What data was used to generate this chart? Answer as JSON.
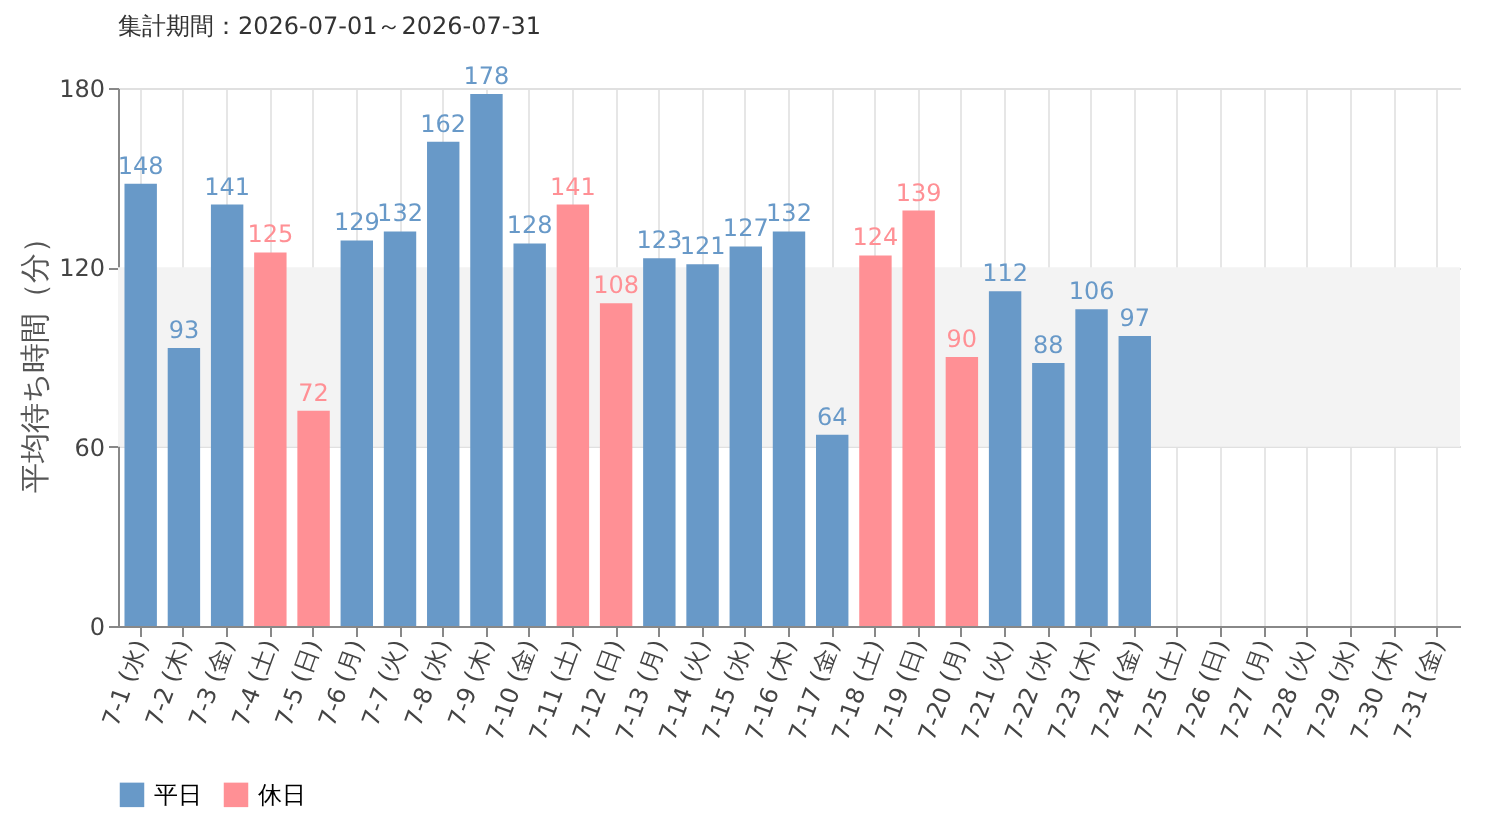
{
  "chart_data": {
    "type": "bar",
    "title": "集計期間：2026-07-01～2026-07-31",
    "ylabel": "平均待ち時間（分）",
    "categories": [
      "7-1 (水)",
      "7-2 (木)",
      "7-3 (金)",
      "7-4 (土)",
      "7-5 (日)",
      "7-6 (月)",
      "7-7 (火)",
      "7-8 (水)",
      "7-9 (木)",
      "7-10 (金)",
      "7-11 (土)",
      "7-12 (日)",
      "7-13 (月)",
      "7-14 (火)",
      "7-15 (水)",
      "7-16 (木)",
      "7-17 (金)",
      "7-18 (土)",
      "7-19 (日)",
      "7-20 (月)",
      "7-21 (火)",
      "7-22 (水)",
      "7-23 (木)",
      "7-24 (金)",
      "7-25 (土)",
      "7-26 (日)",
      "7-27 (月)",
      "7-28 (火)",
      "7-29 (水)",
      "7-30 (木)",
      "7-31 (金)"
    ],
    "series": [
      {
        "name": "平日",
        "color": "#6899c8",
        "values": [
          148,
          93,
          141,
          null,
          null,
          129,
          132,
          162,
          178,
          128,
          null,
          null,
          123,
          121,
          127,
          132,
          64,
          null,
          null,
          null,
          112,
          88,
          106,
          97,
          null,
          null,
          null,
          null,
          null,
          null,
          null
        ]
      },
      {
        "name": "休日",
        "color": "#ff9095",
        "values": [
          null,
          null,
          null,
          125,
          72,
          null,
          null,
          null,
          null,
          null,
          141,
          108,
          null,
          null,
          null,
          null,
          null,
          124,
          139,
          90,
          null,
          null,
          null,
          null,
          null,
          null,
          null,
          null,
          null,
          null,
          null
        ]
      }
    ],
    "ylim": [
      0,
      180
    ],
    "yticks": [
      0,
      60,
      120,
      180
    ],
    "grid": true,
    "legend": "bottom left",
    "data_labels": true,
    "bands": [
      {
        "axis": "y",
        "from": 60,
        "to": 120,
        "color": "#f3f3f3"
      }
    ]
  }
}
